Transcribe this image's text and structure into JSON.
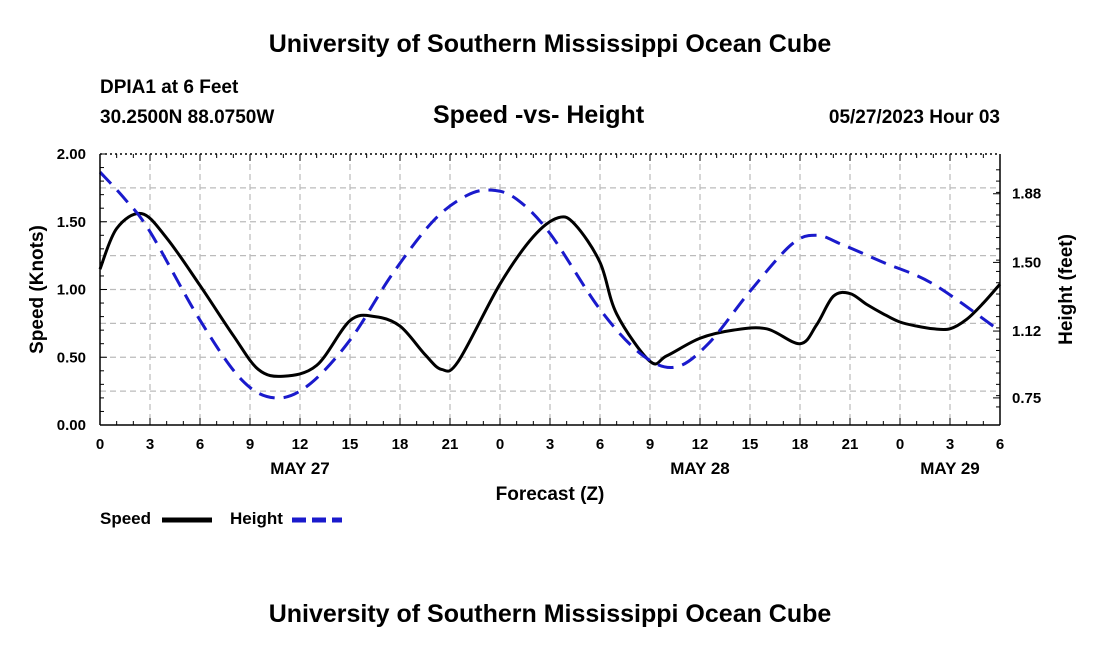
{
  "header": {
    "title": "University of Southern Mississippi Ocean Cube",
    "station": "DPIA1 at 6 Feet",
    "coords": "30.2500N  88.0750W",
    "subtitle": "Speed -vs- Height",
    "datetime": "05/27/2023 Hour 03"
  },
  "footer": {
    "title": "University of Southern Mississippi Ocean Cube"
  },
  "legend": {
    "speed_label": "Speed",
    "height_label": "Height"
  },
  "chart_data": {
    "type": "line",
    "title": "Speed -vs- Height",
    "xlabel": "Forecast (Z)",
    "ylabel_left": "Speed (Knots)",
    "ylabel_right": "Height (feet)",
    "xlim": [
      0,
      54
    ],
    "ylim_left": [
      0,
      2
    ],
    "ylim_right": [
      0.6,
      2.1
    ],
    "x_ticks": [
      0,
      3,
      6,
      9,
      12,
      15,
      18,
      21,
      24,
      27,
      30,
      33,
      36,
      39,
      42,
      45,
      48,
      51,
      54
    ],
    "x_tick_labels": [
      "0",
      "3",
      "6",
      "9",
      "12",
      "15",
      "18",
      "21",
      "0",
      "3",
      "6",
      "9",
      "12",
      "15",
      "18",
      "21",
      "0",
      "3",
      "6"
    ],
    "y_ticks_left": [
      0,
      0.5,
      1.0,
      1.5,
      2.0
    ],
    "y_tick_labels_left": [
      "0.00",
      "0.50",
      "1.00",
      "1.50",
      "2.00"
    ],
    "y_ticks_right": [
      0.75,
      1.12,
      1.5,
      1.88
    ],
    "y_tick_labels_right": [
      "0.75",
      "1.12",
      "1.50",
      "1.88"
    ],
    "date_labels": [
      {
        "x": 12,
        "text": "MAY 27"
      },
      {
        "x": 36,
        "text": "MAY 28"
      },
      {
        "x": 51,
        "text": "MAY 29"
      }
    ],
    "grid": true,
    "series": [
      {
        "name": "Speed",
        "axis": "left",
        "color": "#000000",
        "style": "solid",
        "x": [
          0,
          1,
          2.5,
          4,
          6,
          8,
          9.5,
          11,
          13,
          15,
          16.5,
          18,
          19.5,
          20.5,
          21.5,
          24,
          26,
          27.5,
          28.5,
          30,
          31,
          33,
          34,
          36,
          38,
          40,
          42,
          43,
          44,
          45,
          46,
          47,
          48,
          49,
          50,
          51,
          52,
          53,
          54
        ],
        "values": [
          1.15,
          1.45,
          1.56,
          1.38,
          1.03,
          0.66,
          0.41,
          0.36,
          0.44,
          0.77,
          0.8,
          0.73,
          0.52,
          0.41,
          0.47,
          1.04,
          1.39,
          1.53,
          1.48,
          1.2,
          0.82,
          0.47,
          0.51,
          0.64,
          0.7,
          0.71,
          0.6,
          0.74,
          0.95,
          0.97,
          0.89,
          0.82,
          0.76,
          0.73,
          0.71,
          0.71,
          0.78,
          0.9,
          1.04
        ]
      },
      {
        "name": "Height",
        "axis": "right",
        "color": "#1a1acc",
        "style": "dashed",
        "x": [
          0,
          1.5,
          3,
          6,
          8.5,
          10.5,
          12.5,
          15,
          17.5,
          20,
          22,
          23.5,
          25,
          27,
          30,
          32.5,
          34.5,
          36.5,
          39,
          41.5,
          43,
          44.5,
          47,
          50,
          54
        ],
        "values": [
          2.0,
          1.85,
          1.67,
          1.18,
          0.85,
          0.75,
          0.82,
          1.07,
          1.43,
          1.73,
          1.87,
          1.9,
          1.85,
          1.66,
          1.24,
          0.99,
          0.92,
          1.05,
          1.34,
          1.6,
          1.65,
          1.6,
          1.5,
          1.38,
          1.12
        ]
      }
    ]
  }
}
